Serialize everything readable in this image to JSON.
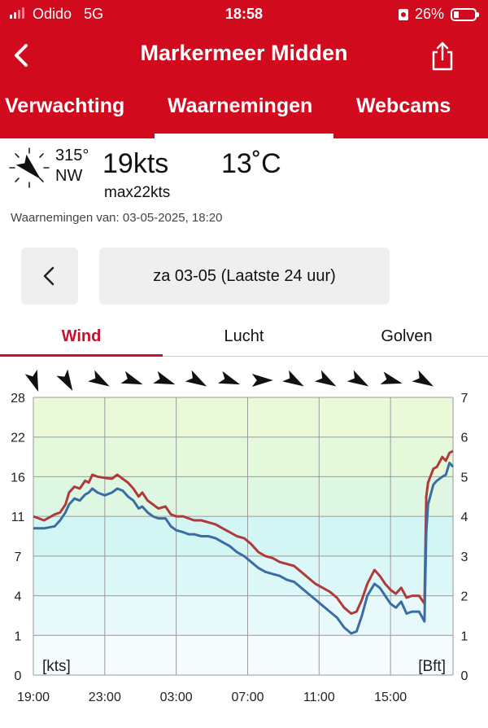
{
  "status": {
    "carrier": "Odido",
    "network": "5G",
    "time": "18:58",
    "battery": "26%",
    "battery_level": 0.26
  },
  "header": {
    "title": "Markermeer Midden",
    "tabs": [
      "Verwachting",
      "Waarnemingen",
      "Webcams"
    ],
    "active_tab": 1
  },
  "current": {
    "direction_deg": "315°",
    "direction": "NW",
    "speed": "19kts",
    "max": "max22kts",
    "temperature": "13˚C",
    "observed": "Waarnemingen van: 03-05-2025, 18:20"
  },
  "date_selector": {
    "label": "za 03-05 (Laatste 24 uur)"
  },
  "sub_tabs": [
    "Wind",
    "Lucht",
    "Golven"
  ],
  "chart_data": {
    "type": "line",
    "x_tick_labels": [
      "19:00",
      "23:00",
      "03:00",
      "07:00",
      "11:00",
      "15:00"
    ],
    "x_ticks_hours": [
      0,
      4,
      8,
      12,
      16,
      20
    ],
    "xlim_hours": [
      0,
      23.5
    ],
    "ylabel_left": "[kts]",
    "ylabel_right": "[Bft]",
    "y_ticks_left": [
      "0",
      "1",
      "4",
      "7",
      "11",
      "16",
      "22",
      "28"
    ],
    "y_ticks_right": [
      "0",
      "1",
      "2",
      "3",
      "4",
      "5",
      "6",
      "7"
    ],
    "ylim_bft": [
      0,
      7
    ],
    "zones": [
      {
        "from_bft": 0,
        "to_bft": 1,
        "color": "#f4fcfe"
      },
      {
        "from_bft": 1,
        "to_bft": 2,
        "color": "#e8f9fc"
      },
      {
        "from_bft": 2,
        "to_bft": 3,
        "color": "#dcf7f7"
      },
      {
        "from_bft": 3,
        "to_bft": 4,
        "color": "#d2f6f4"
      },
      {
        "from_bft": 4,
        "to_bft": 5,
        "color": "#ddf7e3"
      },
      {
        "from_bft": 5,
        "to_bft": 6,
        "color": "#e4f8da"
      },
      {
        "from_bft": 6,
        "to_bft": 7,
        "color": "#eaf9d8"
      }
    ],
    "direction_arrows_deg": [
      340,
      330,
      300,
      290,
      290,
      300,
      290,
      270,
      300,
      300,
      300,
      285,
      300
    ],
    "series": [
      {
        "role": "max",
        "color": "#b03a3a",
        "points": [
          [
            0,
            4.0
          ],
          [
            0.6,
            3.9
          ],
          [
            1.2,
            4.05
          ],
          [
            1.5,
            4.1
          ],
          [
            1.8,
            4.3
          ],
          [
            2,
            4.6
          ],
          [
            2.3,
            4.75
          ],
          [
            2.6,
            4.7
          ],
          [
            2.9,
            4.9
          ],
          [
            3.1,
            4.85
          ],
          [
            3.3,
            5.05
          ],
          [
            3.6,
            5.0
          ],
          [
            4,
            4.97
          ],
          [
            4.4,
            4.95
          ],
          [
            4.7,
            5.05
          ],
          [
            5,
            4.95
          ],
          [
            5.3,
            4.85
          ],
          [
            5.6,
            4.7
          ],
          [
            5.9,
            4.5
          ],
          [
            6.1,
            4.6
          ],
          [
            6.4,
            4.4
          ],
          [
            6.7,
            4.3
          ],
          [
            7,
            4.2
          ],
          [
            7.4,
            4.25
          ],
          [
            7.7,
            4.05
          ],
          [
            8,
            4.0
          ],
          [
            8.4,
            4.0
          ],
          [
            8.7,
            3.95
          ],
          [
            9,
            3.9
          ],
          [
            9.4,
            3.9
          ],
          [
            9.8,
            3.85
          ],
          [
            10.2,
            3.8
          ],
          [
            10.6,
            3.7
          ],
          [
            11,
            3.6
          ],
          [
            11.4,
            3.5
          ],
          [
            11.8,
            3.45
          ],
          [
            12.2,
            3.3
          ],
          [
            12.6,
            3.1
          ],
          [
            13,
            3.0
          ],
          [
            13.4,
            2.95
          ],
          [
            13.8,
            2.85
          ],
          [
            14.2,
            2.8
          ],
          [
            14.6,
            2.75
          ],
          [
            15,
            2.6
          ],
          [
            15.4,
            2.45
          ],
          [
            15.8,
            2.3
          ],
          [
            16.2,
            2.2
          ],
          [
            16.6,
            2.1
          ],
          [
            17,
            1.95
          ],
          [
            17.4,
            1.7
          ],
          [
            17.8,
            1.55
          ],
          [
            18.1,
            1.6
          ],
          [
            18.4,
            1.9
          ],
          [
            18.7,
            2.3
          ],
          [
            19.1,
            2.65
          ],
          [
            19.4,
            2.5
          ],
          [
            19.7,
            2.3
          ],
          [
            20,
            2.15
          ],
          [
            20.3,
            2.05
          ],
          [
            20.6,
            2.2
          ],
          [
            20.9,
            1.95
          ],
          [
            21.2,
            2.0
          ],
          [
            21.6,
            2.0
          ],
          [
            21.9,
            1.8
          ],
          [
            22,
            4.5
          ],
          [
            22.1,
            4.85
          ],
          [
            22.4,
            5.2
          ],
          [
            22.6,
            5.25
          ],
          [
            22.9,
            5.5
          ],
          [
            23.1,
            5.4
          ],
          [
            23.3,
            5.6
          ],
          [
            23.5,
            5.65
          ]
        ]
      },
      {
        "role": "avg",
        "color": "#3a6da5",
        "points": [
          [
            0,
            3.7
          ],
          [
            0.6,
            3.7
          ],
          [
            1.2,
            3.75
          ],
          [
            1.5,
            3.9
          ],
          [
            1.8,
            4.1
          ],
          [
            2,
            4.3
          ],
          [
            2.3,
            4.45
          ],
          [
            2.6,
            4.4
          ],
          [
            2.9,
            4.55
          ],
          [
            3.1,
            4.6
          ],
          [
            3.3,
            4.7
          ],
          [
            3.6,
            4.6
          ],
          [
            4,
            4.53
          ],
          [
            4.4,
            4.6
          ],
          [
            4.7,
            4.7
          ],
          [
            5,
            4.65
          ],
          [
            5.3,
            4.5
          ],
          [
            5.6,
            4.4
          ],
          [
            5.9,
            4.2
          ],
          [
            6.1,
            4.25
          ],
          [
            6.4,
            4.1
          ],
          [
            6.7,
            4.0
          ],
          [
            7,
            3.95
          ],
          [
            7.4,
            3.95
          ],
          [
            7.7,
            3.75
          ],
          [
            8,
            3.65
          ],
          [
            8.4,
            3.6
          ],
          [
            8.7,
            3.55
          ],
          [
            9,
            3.55
          ],
          [
            9.4,
            3.5
          ],
          [
            9.8,
            3.5
          ],
          [
            10.2,
            3.45
          ],
          [
            10.6,
            3.35
          ],
          [
            11,
            3.25
          ],
          [
            11.4,
            3.1
          ],
          [
            11.8,
            3.0
          ],
          [
            12.2,
            2.85
          ],
          [
            12.6,
            2.7
          ],
          [
            13,
            2.6
          ],
          [
            13.4,
            2.55
          ],
          [
            13.8,
            2.5
          ],
          [
            14.2,
            2.4
          ],
          [
            14.6,
            2.35
          ],
          [
            15,
            2.2
          ],
          [
            15.4,
            2.05
          ],
          [
            15.8,
            1.9
          ],
          [
            16.2,
            1.75
          ],
          [
            16.6,
            1.6
          ],
          [
            17,
            1.45
          ],
          [
            17.4,
            1.2
          ],
          [
            17.8,
            1.05
          ],
          [
            18.1,
            1.1
          ],
          [
            18.4,
            1.5
          ],
          [
            18.7,
            2.0
          ],
          [
            19.1,
            2.3
          ],
          [
            19.4,
            2.2
          ],
          [
            19.7,
            2.0
          ],
          [
            20,
            1.8
          ],
          [
            20.3,
            1.7
          ],
          [
            20.6,
            1.85
          ],
          [
            20.9,
            1.55
          ],
          [
            21.2,
            1.6
          ],
          [
            21.6,
            1.6
          ],
          [
            21.9,
            1.35
          ],
          [
            22,
            3.6
          ],
          [
            22.1,
            4.3
          ],
          [
            22.4,
            4.8
          ],
          [
            22.6,
            4.9
          ],
          [
            22.9,
            5.0
          ],
          [
            23.1,
            5.05
          ],
          [
            23.3,
            5.35
          ],
          [
            23.5,
            5.25
          ]
        ]
      }
    ]
  }
}
